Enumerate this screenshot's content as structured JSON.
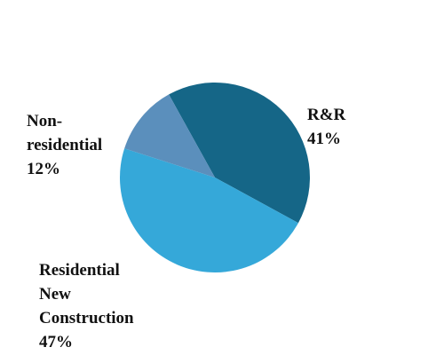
{
  "chart_data": {
    "type": "pie",
    "title": "",
    "slices": [
      {
        "label": [
          "R&R"
        ],
        "value": 41,
        "value_text": "41%",
        "color": "#156687"
      },
      {
        "label": [
          "Residential",
          "New",
          "Construction"
        ],
        "value": 47,
        "value_text": "47%",
        "color": "#35a8d9"
      },
      {
        "label": [
          "Non-",
          "residential"
        ],
        "value": 12,
        "value_text": "12%",
        "color": "#5b8fbc"
      }
    ],
    "start_angle_deg": -29,
    "direction": "clockwise",
    "legend": "none"
  }
}
